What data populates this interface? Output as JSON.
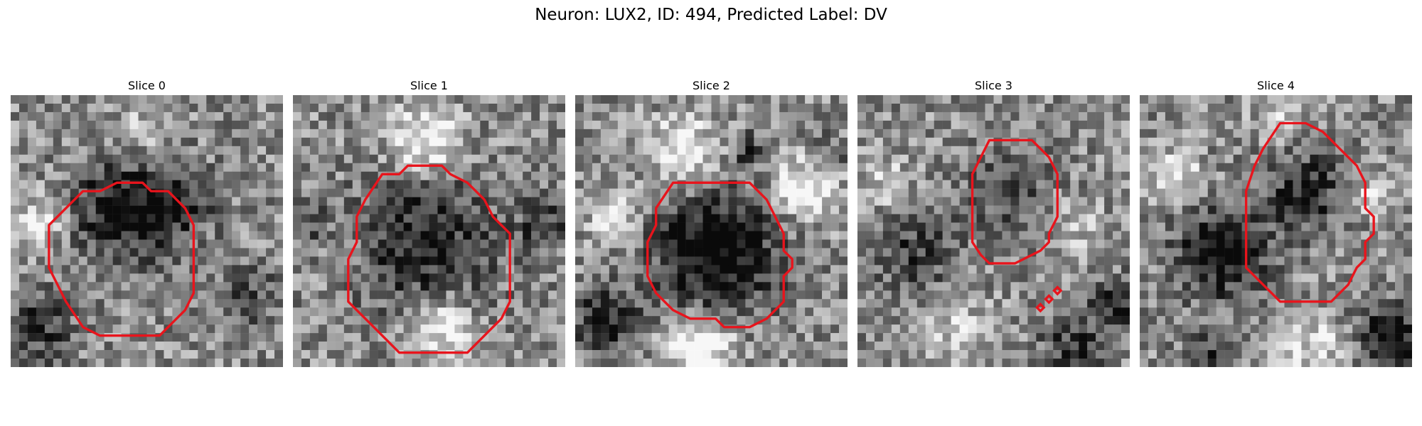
{
  "figure": {
    "title": "Neuron: LUX2, ID: 494, Predicted Label: DV"
  },
  "panels": [
    {
      "title": "Slice 0",
      "seed": 11
    },
    {
      "title": "Slice 1",
      "seed": 23
    },
    {
      "title": "Slice 2",
      "seed": 37
    },
    {
      "title": "Slice 3",
      "seed": 53
    },
    {
      "title": "Slice 4",
      "seed": 71
    }
  ],
  "colors": {
    "contour": "#e8141c",
    "background": "#ffffff"
  }
}
